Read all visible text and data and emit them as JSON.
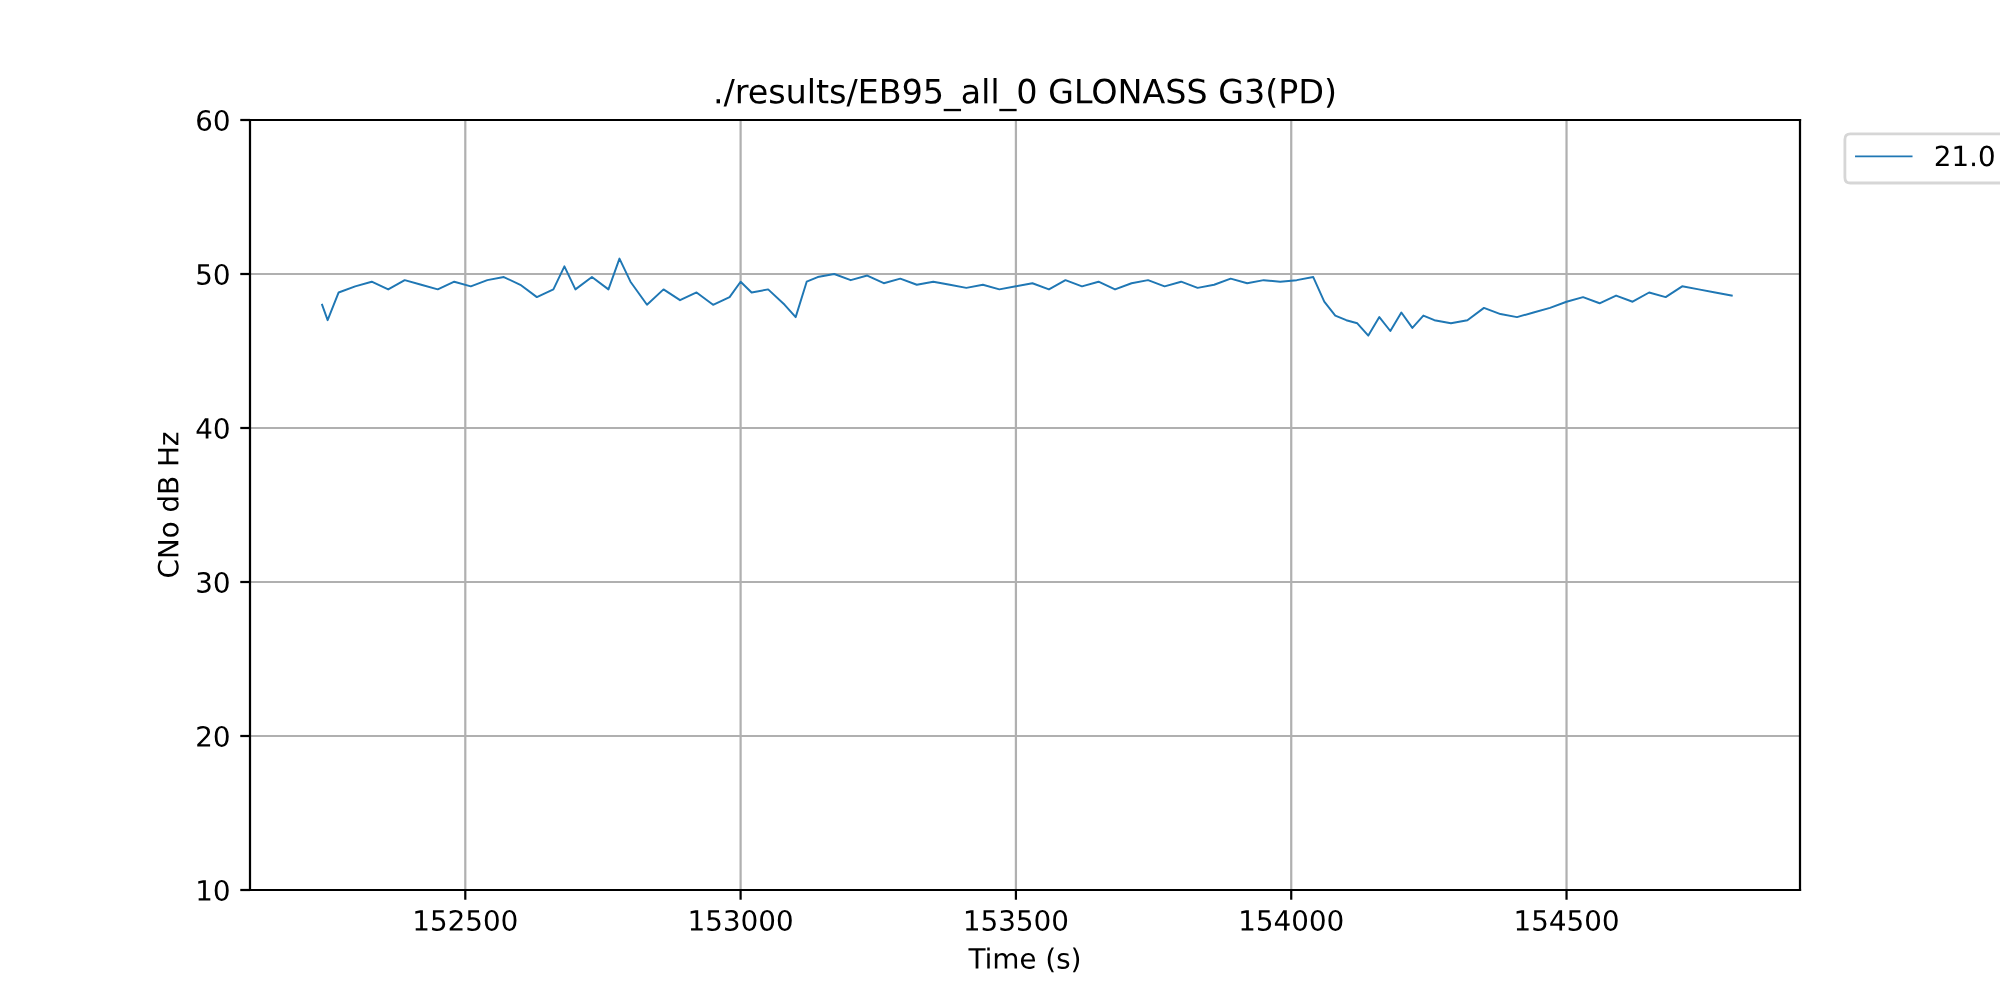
{
  "chart_data": {
    "type": "line",
    "title": "./results/EB95_all_0 GLONASS G3(PD)",
    "xlabel": "Time (s)",
    "ylabel": "CNo dB Hz",
    "xlim": [
      152109,
      154924
    ],
    "xticks": [
      152500,
      153000,
      153500,
      154000,
      154500
    ],
    "ylim": [
      10,
      60
    ],
    "yticks": [
      10,
      20,
      30,
      40,
      50,
      60
    ],
    "grid": true,
    "legend": "top right",
    "series": [
      {
        "name": "21.0",
        "color": "#1f77b4",
        "x": [
          152240,
          152250,
          152270,
          152300,
          152330,
          152360,
          152390,
          152420,
          152450,
          152480,
          152510,
          152540,
          152570,
          152600,
          152630,
          152660,
          152680,
          152700,
          152730,
          152760,
          152780,
          152800,
          152830,
          152860,
          152890,
          152920,
          152950,
          152980,
          153000,
          153020,
          153050,
          153080,
          153100,
          153120,
          153140,
          153170,
          153200,
          153230,
          153260,
          153290,
          153320,
          153350,
          153380,
          153410,
          153440,
          153470,
          153500,
          153530,
          153560,
          153590,
          153620,
          153650,
          153680,
          153710,
          153740,
          153770,
          153800,
          153830,
          153860,
          153890,
          153920,
          153950,
          153980,
          154010,
          154040,
          154060,
          154080,
          154100,
          154120,
          154140,
          154160,
          154180,
          154200,
          154220,
          154240,
          154260,
          154290,
          154320,
          154350,
          154380,
          154410,
          154440,
          154470,
          154500,
          154530,
          154560,
          154590,
          154620,
          154650,
          154680,
          154710,
          154740,
          154770,
          154800
        ],
        "values": [
          48.0,
          47.0,
          48.8,
          49.2,
          49.5,
          49.0,
          49.6,
          49.3,
          49.0,
          49.5,
          49.2,
          49.6,
          49.8,
          49.3,
          48.5,
          49.0,
          50.5,
          49.0,
          49.8,
          49.0,
          51.0,
          49.5,
          48.0,
          49.0,
          48.3,
          48.8,
          48.0,
          48.5,
          49.5,
          48.8,
          49.0,
          48.0,
          47.2,
          49.5,
          49.8,
          50.0,
          49.6,
          49.9,
          49.4,
          49.7,
          49.3,
          49.5,
          49.3,
          49.1,
          49.3,
          49.0,
          49.2,
          49.4,
          49.0,
          49.6,
          49.2,
          49.5,
          49.0,
          49.4,
          49.6,
          49.2,
          49.5,
          49.1,
          49.3,
          49.7,
          49.4,
          49.6,
          49.5,
          49.6,
          49.8,
          48.2,
          47.3,
          47.0,
          46.8,
          46.0,
          47.2,
          46.3,
          47.5,
          46.5,
          47.3,
          47.0,
          46.8,
          47.0,
          47.8,
          47.4,
          47.2,
          47.5,
          47.8,
          48.2,
          48.5,
          48.1,
          48.6,
          48.2,
          48.8,
          48.5,
          49.2,
          49.0,
          48.8,
          48.6
        ]
      }
    ]
  }
}
